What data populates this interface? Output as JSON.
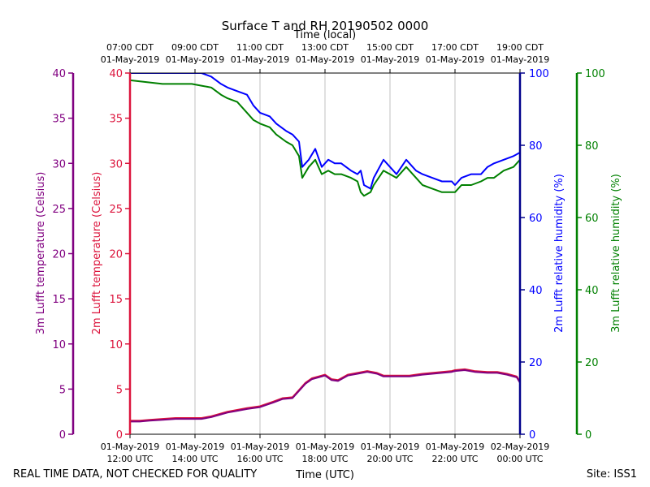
{
  "chart_data": {
    "type": "line",
    "title": "Surface T and RH 20190502 0000",
    "top_axis_title": "Time (local)",
    "bottom_axis_title": "Time (UTC)",
    "top_ticks": [
      {
        "h": 12,
        "line1": "07:00 CDT",
        "line2": "01-May-2019"
      },
      {
        "h": 14,
        "line1": "09:00 CDT",
        "line2": "01-May-2019"
      },
      {
        "h": 16,
        "line1": "11:00 CDT",
        "line2": "01-May-2019"
      },
      {
        "h": 18,
        "line1": "13:00 CDT",
        "line2": "01-May-2019"
      },
      {
        "h": 20,
        "line1": "15:00 CDT",
        "line2": "01-May-2019"
      },
      {
        "h": 22,
        "line1": "17:00 CDT",
        "line2": "01-May-2019"
      },
      {
        "h": 24,
        "line1": "19:00 CDT",
        "line2": "01-May-2019"
      }
    ],
    "bottom_ticks": [
      {
        "h": 12,
        "line1": "01-May-2019",
        "line2": "12:00 UTC"
      },
      {
        "h": 14,
        "line1": "01-May-2019",
        "line2": "14:00 UTC"
      },
      {
        "h": 16,
        "line1": "01-May-2019",
        "line2": "16:00 UTC"
      },
      {
        "h": 18,
        "line1": "01-May-2019",
        "line2": "18:00 UTC"
      },
      {
        "h": 20,
        "line1": "01-May-2019",
        "line2": "20:00 UTC"
      },
      {
        "h": 22,
        "line1": "01-May-2019",
        "line2": "22:00 UTC"
      },
      {
        "h": 24,
        "line1": "02-May-2019",
        "line2": "00:00 UTC"
      }
    ],
    "xlim": [
      12,
      24
    ],
    "temp_ylim": [
      0,
      40
    ],
    "rh_ylim": [
      0,
      100
    ],
    "temp_ticks": [
      0,
      5,
      10,
      15,
      20,
      25,
      30,
      35,
      40
    ],
    "rh_ticks": [
      0,
      20,
      40,
      60,
      80,
      100
    ],
    "axes": {
      "left_outer": {
        "label": "3m Lufft temperature (Celsius)",
        "color": "#800080"
      },
      "left_inner": {
        "label": "2m Lufft temperature (Celsius)",
        "color": "#dc143c"
      },
      "right_inner": {
        "label": "2m Lufft relative humidity (%)",
        "color": "#0000ff"
      },
      "right_outer": {
        "label": "3m Lufft relative humidity (%)",
        "color": "#008000"
      }
    },
    "series": [
      {
        "name": "2m Lufft relative humidity",
        "axis": "rh",
        "color": "#0000ff",
        "x": [
          12.0,
          12.5,
          13.0,
          13.5,
          13.9,
          14.2,
          14.5,
          14.8,
          15.0,
          15.3,
          15.6,
          15.8,
          16.0,
          16.3,
          16.5,
          16.8,
          17.0,
          17.2,
          17.3,
          17.5,
          17.7,
          17.9,
          18.1,
          18.3,
          18.5,
          18.8,
          19.0,
          19.1,
          19.2,
          19.4,
          19.5,
          19.8,
          20.0,
          20.2,
          20.5,
          20.8,
          21.0,
          21.3,
          21.6,
          21.9,
          22.0,
          22.2,
          22.5,
          22.8,
          23.0,
          23.2,
          23.5,
          23.8,
          24.0
        ],
        "values": [
          100,
          100,
          100,
          100,
          100,
          100,
          99,
          97,
          96,
          95,
          94,
          91,
          89,
          88,
          86,
          84,
          83,
          81,
          74,
          76,
          79,
          74,
          76,
          75,
          75,
          73,
          72,
          73,
          69,
          68,
          71,
          76,
          74,
          72,
          76,
          73,
          72,
          71,
          70,
          70,
          69,
          71,
          72,
          72,
          74,
          75,
          76,
          77,
          78
        ]
      },
      {
        "name": "3m Lufft relative humidity",
        "axis": "rh",
        "color": "#008000",
        "x": [
          12.0,
          12.5,
          13.0,
          13.5,
          13.9,
          14.2,
          14.5,
          14.8,
          15.0,
          15.3,
          15.6,
          15.8,
          16.0,
          16.3,
          16.5,
          16.8,
          17.0,
          17.2,
          17.3,
          17.5,
          17.7,
          17.9,
          18.1,
          18.3,
          18.5,
          18.8,
          19.0,
          19.1,
          19.2,
          19.4,
          19.5,
          19.8,
          20.0,
          20.2,
          20.5,
          20.8,
          21.0,
          21.3,
          21.6,
          21.9,
          22.0,
          22.2,
          22.5,
          22.8,
          23.0,
          23.2,
          23.5,
          23.8,
          24.0
        ],
        "values": [
          98,
          97.5,
          97,
          97,
          97,
          96.5,
          96,
          94,
          93,
          92,
          89,
          87,
          86,
          85,
          83,
          81,
          80,
          77,
          71,
          74,
          76,
          72,
          73,
          72,
          72,
          71,
          70,
          67,
          66,
          67,
          69,
          73,
          72,
          71,
          74,
          71,
          69,
          68,
          67,
          67,
          67,
          69,
          69,
          70,
          71,
          71,
          73,
          74,
          76
        ]
      },
      {
        "name": "2m Lufft temperature",
        "axis": "temp",
        "color": "#dc143c",
        "x": [
          12.0,
          12.3,
          12.6,
          13.0,
          13.4,
          13.8,
          14.2,
          14.5,
          14.8,
          15.0,
          15.3,
          15.6,
          16.0,
          16.4,
          16.7,
          17.0,
          17.2,
          17.4,
          17.6,
          17.8,
          18.0,
          18.2,
          18.4,
          18.7,
          19.0,
          19.3,
          19.6,
          19.8,
          20.0,
          20.3,
          20.6,
          21.0,
          21.3,
          21.6,
          21.9,
          22.0,
          22.3,
          22.6,
          23.0,
          23.3,
          23.6,
          23.9,
          24.0
        ],
        "values": [
          1.5,
          1.5,
          1.6,
          1.7,
          1.8,
          1.8,
          1.8,
          2.0,
          2.3,
          2.5,
          2.7,
          2.9,
          3.1,
          3.6,
          4.0,
          4.1,
          4.9,
          5.7,
          6.2,
          6.4,
          6.6,
          6.1,
          6.0,
          6.6,
          6.8,
          7.0,
          6.8,
          6.5,
          6.5,
          6.5,
          6.5,
          6.7,
          6.8,
          6.9,
          7.0,
          7.1,
          7.2,
          7.0,
          6.9,
          6.9,
          6.7,
          6.4,
          5.8
        ]
      },
      {
        "name": "3m Lufft temperature",
        "axis": "temp",
        "color": "#800080",
        "x": [
          12.0,
          12.3,
          12.6,
          13.0,
          13.4,
          13.8,
          14.2,
          14.5,
          14.8,
          15.0,
          15.3,
          15.6,
          16.0,
          16.4,
          16.7,
          17.0,
          17.2,
          17.4,
          17.6,
          17.8,
          18.0,
          18.2,
          18.4,
          18.7,
          19.0,
          19.3,
          19.6,
          19.8,
          20.0,
          20.3,
          20.6,
          21.0,
          21.3,
          21.6,
          21.9,
          22.0,
          22.3,
          22.6,
          23.0,
          23.3,
          23.6,
          23.9,
          24.0
        ],
        "values": [
          1.4,
          1.4,
          1.5,
          1.6,
          1.7,
          1.7,
          1.7,
          1.9,
          2.2,
          2.4,
          2.6,
          2.8,
          3.0,
          3.5,
          3.9,
          4.0,
          4.8,
          5.6,
          6.1,
          6.3,
          6.5,
          6.0,
          5.9,
          6.5,
          6.7,
          6.9,
          6.7,
          6.4,
          6.4,
          6.4,
          6.4,
          6.6,
          6.7,
          6.8,
          6.9,
          7.0,
          7.1,
          6.9,
          6.8,
          6.8,
          6.6,
          6.3,
          5.7
        ]
      }
    ],
    "grid": "vertical",
    "footer_left": "REAL TIME DATA, NOT CHECKED FOR QUALITY",
    "footer_right": "Site: ISS1"
  }
}
